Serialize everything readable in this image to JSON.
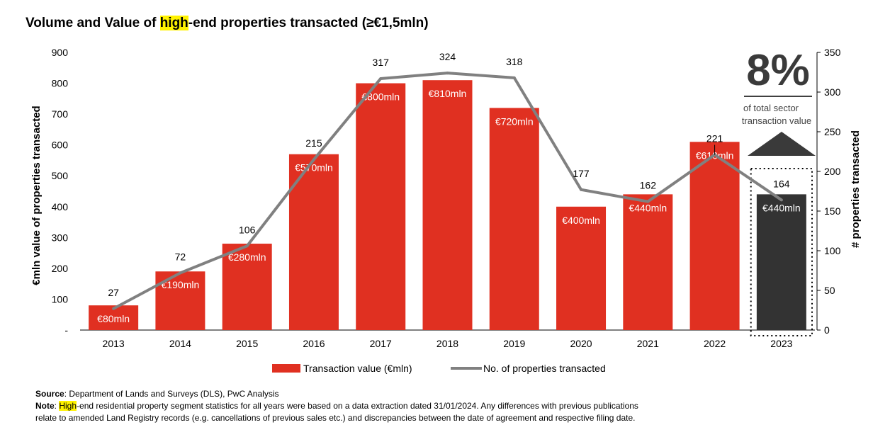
{
  "title": {
    "before": "Volume and Value of ",
    "highlight": "high",
    "after": "-end properties transacted (≥€1,5mln)"
  },
  "colors": {
    "bar": "#e03021",
    "bar_highlight": "#333333",
    "line": "#808080",
    "callout": "#3a3a3a"
  },
  "chart_data": {
    "type": "bar",
    "categories": [
      "2013",
      "2014",
      "2015",
      "2016",
      "2017",
      "2018",
      "2019",
      "2020",
      "2021",
      "2022",
      "2023"
    ],
    "series": [
      {
        "name": "Transaction value (€mln)",
        "axis": "left",
        "values": [
          80,
          190,
          280,
          570,
          800,
          810,
          720,
          400,
          440,
          610,
          440
        ],
        "labels": [
          "€80mln",
          "€190mln",
          "€280mln",
          "€570mln",
          "€800mln",
          "€810mln",
          "€720mln",
          "€400mln",
          "€440mln",
          "€610mln",
          "€440mln"
        ]
      },
      {
        "name": "No. of properties transacted",
        "type": "line",
        "axis": "right",
        "values": [
          27,
          72,
          106,
          215,
          317,
          324,
          318,
          177,
          162,
          221,
          164
        ]
      }
    ],
    "ylabel": "€mln value of properties transacted",
    "ylim": [
      0,
      900
    ],
    "yticks": [
      "-",
      "100",
      "200",
      "300",
      "400",
      "500",
      "600",
      "700",
      "800",
      "900"
    ],
    "y2label": "# properties transacted",
    "y2lim": [
      0,
      350
    ],
    "y2ticks": [
      "0",
      "50",
      "100",
      "150",
      "200",
      "250",
      "300",
      "350"
    ],
    "highlight_category": "2023",
    "legend_position": "bottom",
    "grid": false,
    "callout": {
      "value": "8%",
      "text_line1": "of total sector",
      "text_line2": "transaction value"
    }
  },
  "notes": {
    "source_label": "Source",
    "source_text": ": Department of Lands and Surveys (DLS), PwC Analysis",
    "note_label": "Note",
    "note_sep": ": ",
    "note_highlight": "High",
    "note_text_line1": "-end residential property segment statistics for all years were based on a data extraction dated 31/01/2024. Any differences with previous publications",
    "note_text_line2": "relate to amended Land Registry records (e.g. cancellations of previous sales etc.) and discrepancies between the date of agreement and respective filing date."
  }
}
